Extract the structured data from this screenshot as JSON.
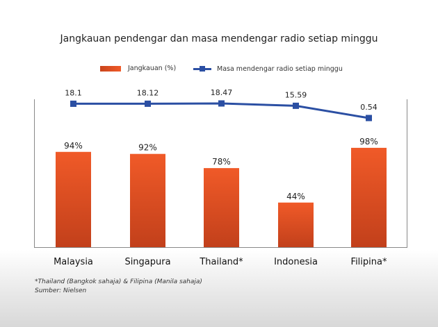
{
  "chart_data": {
    "type": "bar",
    "title": "Jangkauan pendengar dan masa mendengar radio setiap minggu",
    "categories": [
      "Malaysia",
      "Singapura",
      "Thailand*",
      "Indonesia",
      "Filipina*"
    ],
    "series": [
      {
        "name": "Jangkauan (%)",
        "type": "bar",
        "values": [
          94,
          92,
          78,
          44,
          98
        ],
        "labels": [
          "94%",
          "92%",
          "78%",
          "44%",
          "98%"
        ],
        "color": "#e8532a"
      },
      {
        "name": "Masa mendengar radio setiap minggu",
        "type": "line",
        "values": [
          18.1,
          18.12,
          18.47,
          15.59,
          0.54
        ],
        "labels": [
          "18.1",
          "18.12",
          "18.47",
          "15.59",
          "0.54"
        ],
        "color": "#2b4fa3"
      }
    ],
    "ylim": [
      0,
      100
    ],
    "grid": false,
    "legend": "top"
  },
  "footnotes": [
    "*Thailand (Bangkok sahaja) & Filipina (Manila sahaja)",
    "Sumber: Nielsen"
  ]
}
